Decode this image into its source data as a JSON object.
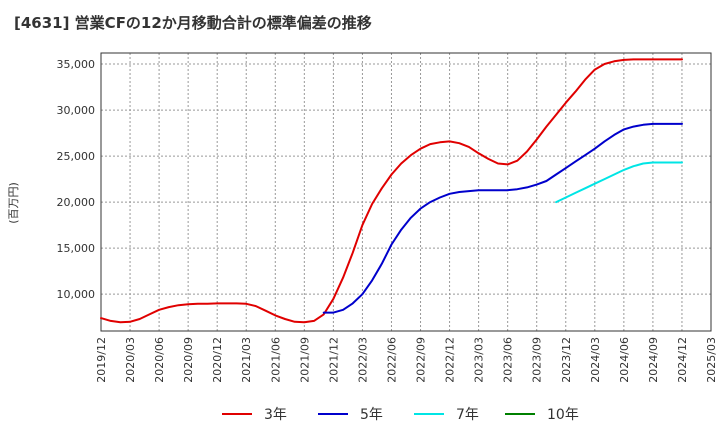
{
  "chart_data": {
    "type": "line",
    "title": "[4631]  営業CFの12か月移動合計の標準偏差の推移",
    "ylabel": "(百万円)",
    "xlabel": "",
    "ylim": [
      6000,
      36200
    ],
    "yticks": [
      10000,
      15000,
      20000,
      25000,
      30000,
      35000
    ],
    "ytick_labels": [
      "10,000",
      "15,000",
      "20,000",
      "25,000",
      "30,000",
      "35,000"
    ],
    "xlim": [
      "2019-12",
      "2025-03"
    ],
    "xticks": [
      "2019/12",
      "2020/03",
      "2020/06",
      "2020/09",
      "2020/12",
      "2021/03",
      "2021/06",
      "2021/09",
      "2021/12",
      "2022/03",
      "2022/06",
      "2022/09",
      "2022/12",
      "2023/03",
      "2023/06",
      "2023/09",
      "2023/12",
      "2024/03",
      "2024/06",
      "2024/09",
      "2024/12",
      "2025/03"
    ],
    "grid": true,
    "legend_position": "bottom",
    "series": [
      {
        "name": "3年",
        "color": "#e00000",
        "x": [
          "2019-12",
          "2020-01",
          "2020-02",
          "2020-03",
          "2020-04",
          "2020-05",
          "2020-06",
          "2020-07",
          "2020-08",
          "2020-09",
          "2020-10",
          "2020-11",
          "2020-12",
          "2021-01",
          "2021-02",
          "2021-03",
          "2021-04",
          "2021-05",
          "2021-06",
          "2021-07",
          "2021-08",
          "2021-09",
          "2021-10",
          "2021-11",
          "2021-12",
          "2022-01",
          "2022-02",
          "2022-03",
          "2022-04",
          "2022-05",
          "2022-06",
          "2022-07",
          "2022-08",
          "2022-09",
          "2022-10",
          "2022-11",
          "2022-12",
          "2023-01",
          "2023-02",
          "2023-03",
          "2023-04",
          "2023-05",
          "2023-06",
          "2023-07",
          "2023-08",
          "2023-09",
          "2023-10",
          "2023-11",
          "2023-12",
          "2024-01",
          "2024-02",
          "2024-03",
          "2024-04",
          "2024-05",
          "2024-06",
          "2024-07",
          "2024-08",
          "2024-09",
          "2024-10",
          "2024-11",
          "2024-12"
        ],
        "values": [
          7400,
          7100,
          6950,
          7000,
          7300,
          7800,
          8300,
          8600,
          8800,
          8900,
          8950,
          8950,
          9000,
          9000,
          9000,
          8950,
          8700,
          8200,
          7700,
          7300,
          7000,
          6950,
          7100,
          7800,
          9500,
          11800,
          14500,
          17500,
          19800,
          21500,
          23000,
          24200,
          25100,
          25800,
          26300,
          26500,
          26600,
          26400,
          26000,
          25300,
          24700,
          24200,
          24100,
          24500,
          25500,
          26800,
          28200,
          29500,
          30800,
          32000,
          33300,
          34400,
          35000,
          35300,
          35450,
          35500,
          35500,
          35500,
          35500,
          35500,
          35500
        ]
      },
      {
        "name": "5年",
        "color": "#0000cc",
        "x": [
          "2021-11",
          "2021-12",
          "2022-01",
          "2022-02",
          "2022-03",
          "2022-04",
          "2022-05",
          "2022-06",
          "2022-07",
          "2022-08",
          "2022-09",
          "2022-10",
          "2022-11",
          "2022-12",
          "2023-01",
          "2023-02",
          "2023-03",
          "2023-04",
          "2023-05",
          "2023-06",
          "2023-07",
          "2023-08",
          "2023-09",
          "2023-10",
          "2023-11",
          "2023-12",
          "2024-01",
          "2024-02",
          "2024-03",
          "2024-04",
          "2024-05",
          "2024-06",
          "2024-07",
          "2024-08",
          "2024-09",
          "2024-10",
          "2024-11",
          "2024-12"
        ],
        "values": [
          8000,
          8000,
          8300,
          9000,
          10000,
          11500,
          13300,
          15400,
          17000,
          18300,
          19300,
          20000,
          20500,
          20900,
          21100,
          21200,
          21300,
          21300,
          21300,
          21300,
          21400,
          21600,
          21900,
          22300,
          23000,
          23700,
          24400,
          25100,
          25800,
          26600,
          27300,
          27900,
          28200,
          28400,
          28500,
          28500,
          28500,
          28500
        ]
      },
      {
        "name": "7年",
        "color": "#00e5e5",
        "x": [
          "2023-11",
          "2023-12",
          "2024-01",
          "2024-02",
          "2024-03",
          "2024-04",
          "2024-05",
          "2024-06",
          "2024-07",
          "2024-08",
          "2024-09",
          "2024-10",
          "2024-11",
          "2024-12"
        ],
        "values": [
          20000,
          20500,
          21000,
          21500,
          22000,
          22500,
          23000,
          23500,
          23900,
          24200,
          24300,
          24300,
          24300,
          24300
        ]
      },
      {
        "name": "10年",
        "color": "#008000",
        "x": [],
        "values": []
      }
    ]
  }
}
